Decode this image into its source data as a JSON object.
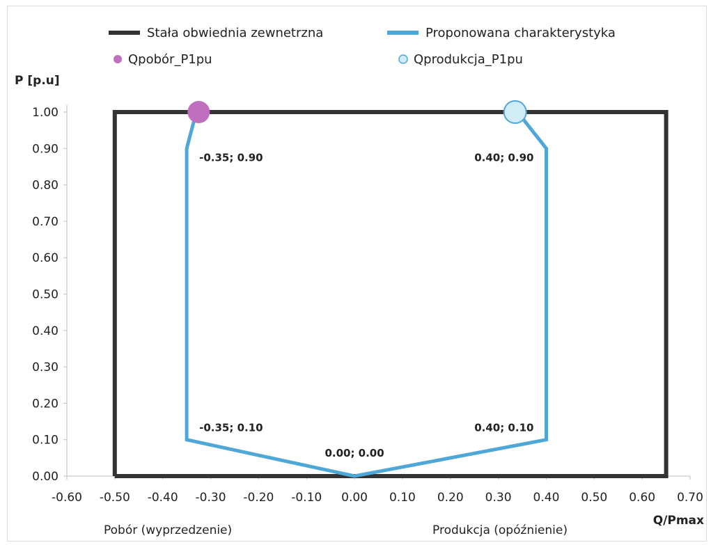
{
  "chart_data": {
    "type": "line",
    "ylabel": "P [p.u]",
    "xlabel": "Q/Pmax",
    "xlim": [
      -0.6,
      0.7
    ],
    "ylim": [
      0,
      1.0
    ],
    "x_ticks": [
      "-0.60",
      "-0.50",
      "-0.40",
      "-0.30",
      "-0.20",
      "-0.10",
      "0.00",
      "0.10",
      "0.20",
      "0.30",
      "0.40",
      "0.50",
      "0.60",
      "0.70"
    ],
    "y_ticks": [
      "0.00",
      "0.10",
      "0.20",
      "0.30",
      "0.40",
      "0.50",
      "0.60",
      "0.70",
      "0.80",
      "0.90",
      "1.00"
    ],
    "grid": false,
    "legend_position": "top",
    "series": [
      {
        "name": "Stała obwiednia zewnetrzna",
        "kind": "line",
        "color": "#333333",
        "points": [
          [
            -0.5,
            0
          ],
          [
            -0.5,
            1.0
          ],
          [
            0.65,
            1.0
          ],
          [
            0.65,
            0
          ],
          [
            -0.5,
            0
          ]
        ]
      },
      {
        "name": "Proponowana charakterystyka",
        "kind": "line",
        "color": "#4fa7d8",
        "points": [
          [
            -0.33,
            1.0
          ],
          [
            -0.35,
            0.9
          ],
          [
            -0.35,
            0.1
          ],
          [
            0.0,
            0.0
          ],
          [
            0.4,
            0.1
          ],
          [
            0.4,
            0.9
          ],
          [
            0.34,
            1.0
          ]
        ]
      },
      {
        "name": "Qpobór_P1pu",
        "kind": "marker",
        "color": "#c06fbf",
        "points": [
          [
            -0.325,
            1.0
          ]
        ]
      },
      {
        "name": "Qprodukcja_P1pu",
        "kind": "marker",
        "color": "#cfecf7",
        "stroke": "#4fa7d8",
        "points": [
          [
            0.335,
            1.0
          ]
        ]
      }
    ],
    "data_labels": [
      {
        "text": "-0.35; 0.90",
        "x": -0.35,
        "y": 0.9,
        "anchor": "start",
        "dx": 18,
        "dy": 18
      },
      {
        "text": "0.40; 0.90",
        "x": 0.4,
        "y": 0.9,
        "anchor": "end",
        "dx": -18,
        "dy": 18
      },
      {
        "text": "-0.35; 0.10",
        "x": -0.35,
        "y": 0.1,
        "anchor": "start",
        "dx": 18,
        "dy": -12
      },
      {
        "text": "0.40; 0.10",
        "x": 0.4,
        "y": 0.1,
        "anchor": "end",
        "dx": -18,
        "dy": -12
      },
      {
        "text": "0.00; 0.00",
        "x": 0.0,
        "y": 0.0,
        "anchor": "middle",
        "dx": 0,
        "dy": -28
      }
    ],
    "annotations": {
      "left_region": "Pobór (wyprzedzenie)",
      "right_region": "Produkcja (opóźnienie)"
    }
  }
}
